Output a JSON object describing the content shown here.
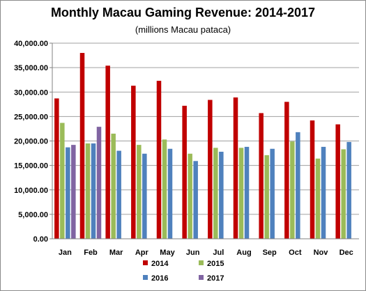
{
  "chart_data": {
    "type": "bar",
    "title": "Monthly Macau Gaming Revenue: 2014-2017",
    "subtitle": "(millions Macau pataca)",
    "xlabel": "",
    "ylabel": "",
    "ylim": [
      0,
      40000
    ],
    "yticks": [
      0,
      5000,
      10000,
      15000,
      20000,
      25000,
      30000,
      35000,
      40000
    ],
    "ytick_labels": [
      "0.00",
      "5,000.00",
      "10,000.00",
      "15,000.00",
      "20,000.00",
      "25,000.00",
      "30,000.00",
      "35,000.00",
      "40,000.00"
    ],
    "grid": "horizontal",
    "legend_position": "bottom",
    "categories": [
      "Jan",
      "Feb",
      "Mar",
      "Apr",
      "May",
      "Jun",
      "Jul",
      "Aug",
      "Sep",
      "Oct",
      "Nov",
      "Dec"
    ],
    "series": [
      {
        "name": "2014",
        "color": "#c00000",
        "values": [
          28700,
          38000,
          35400,
          31300,
          32300,
          27200,
          28400,
          28900,
          25700,
          28000,
          24200,
          23400
        ]
      },
      {
        "name": "2015",
        "color": "#9bbb59",
        "values": [
          23700,
          19500,
          21500,
          19200,
          20300,
          17400,
          18600,
          18600,
          17100,
          19900,
          16400,
          18300
        ]
      },
      {
        "name": "2016",
        "color": "#4f81bd",
        "values": [
          18700,
          19500,
          18000,
          17400,
          18400,
          15900,
          17800,
          18800,
          18400,
          21800,
          18800,
          19800
        ]
      },
      {
        "name": "2017",
        "color": "#8064a2",
        "values": [
          19200,
          22900,
          null,
          null,
          null,
          null,
          null,
          null,
          null,
          null,
          null,
          null
        ]
      }
    ]
  }
}
